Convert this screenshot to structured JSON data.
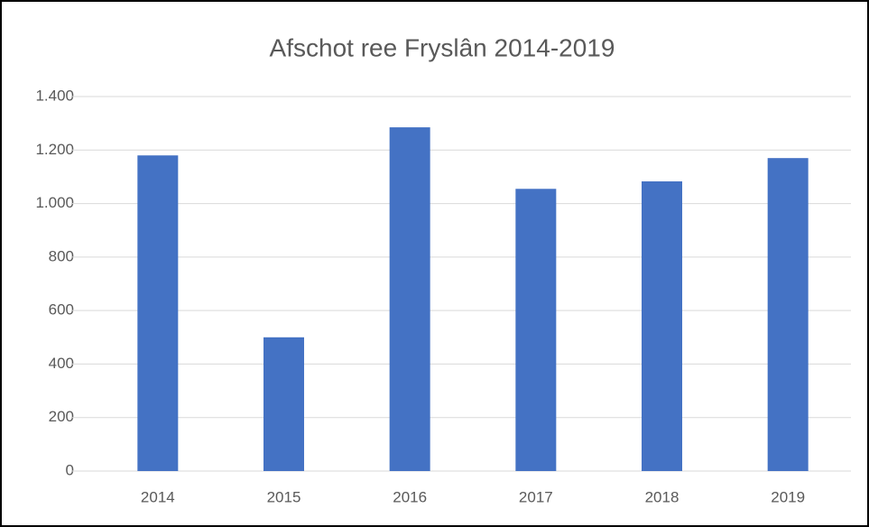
{
  "chart_data": {
    "type": "bar",
    "title": "Afschot ree Fryslân 2014-2019",
    "categories": [
      "2014",
      "2015",
      "2016",
      "2017",
      "2018",
      "2019"
    ],
    "values": [
      1180,
      500,
      1285,
      1055,
      1083,
      1170
    ],
    "color": "#4472c4",
    "ylim": [
      0,
      1400
    ],
    "yticks": [
      0,
      200,
      400,
      600,
      800,
      {
        "value": 1000,
        "label": "1.000"
      },
      {
        "value": 1200,
        "label": "1.200"
      },
      {
        "value": 1400,
        "label": "1.400"
      }
    ],
    "grid": true
  }
}
